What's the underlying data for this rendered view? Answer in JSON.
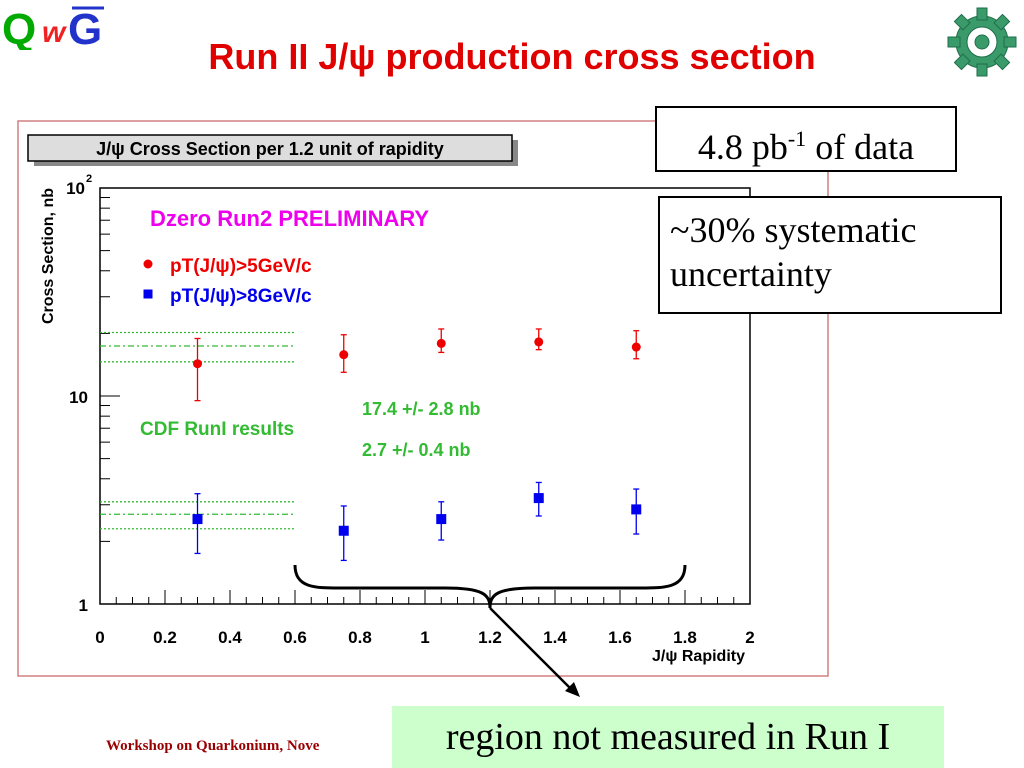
{
  "slide": {
    "title": "Run II J/ψ production cross section",
    "footer": "Workshop on Quarkonium, Nove",
    "logo_left_text": "QWG"
  },
  "callouts": {
    "lumi_base": "4.8 pb",
    "lumi_exp": "-1",
    "lumi_tail": " of data",
    "systematic_line1": "~30% systematic",
    "systematic_line2": "uncertainty",
    "region": "region not measured in Run I"
  },
  "chart_data": {
    "type": "scatter",
    "title": "J/ψ Cross Section per 1.2 unit of rapidity",
    "subtitle": "Dzero Run2 PRELIMINARY",
    "xlabel": "J/ψ Rapidity",
    "ylabel": "Cross Section, nb",
    "xlim": [
      0,
      2
    ],
    "ylim": [
      1,
      100
    ],
    "y_scale": "log",
    "grid": false,
    "legend_placement": "top-left",
    "x_ticks": [
      "0",
      "0.2",
      "0.4",
      "0.6",
      "0.8",
      "1",
      "1.2",
      "1.4",
      "1.6",
      "1.8",
      "2"
    ],
    "y_ticks": [
      "1",
      "10",
      "10²"
    ],
    "series": [
      {
        "name": "pT(J/ψ)>5GeV/c",
        "marker": "circle",
        "color": "#ee0000",
        "x": [
          0.3,
          0.75,
          1.05,
          1.35,
          1.65
        ],
        "y": [
          14.3,
          15.8,
          17.9,
          18.2,
          17.2
        ],
        "y_err_low": [
          4.8,
          2.8,
          1.7,
          1.5,
          2.1
        ],
        "y_err_high": [
          4.6,
          3.9,
          3.1,
          2.8,
          3.4
        ]
      },
      {
        "name": "pT(J/ψ)>8GeV/c",
        "marker": "square",
        "color": "#0000ee",
        "x": [
          0.3,
          0.75,
          1.05,
          1.35,
          1.65
        ],
        "y": [
          2.56,
          2.25,
          2.56,
          3.23,
          2.85
        ],
        "y_err_low": [
          0.81,
          0.63,
          0.53,
          0.58,
          0.68
        ],
        "y_err_high": [
          0.83,
          0.71,
          0.54,
          0.61,
          0.72
        ]
      }
    ],
    "reference": {
      "label": "CDF RunI results",
      "color": "#33bb33",
      "bands": [
        {
          "text": "17.4 +/- 2.8 nb",
          "center": 17.4,
          "low": 14.6,
          "high": 20.2,
          "x_range": [
            0,
            0.6
          ]
        },
        {
          "text": "2.7 +/- 0.4 nb",
          "center": 2.7,
          "low": 2.3,
          "high": 3.1,
          "x_range": [
            0,
            0.6
          ]
        }
      ]
    },
    "brace_x_range": [
      0.6,
      1.8
    ],
    "colors": {
      "frame": "#d08080",
      "title_box": "#dddddd",
      "subtitle": "#ee00ee"
    }
  }
}
